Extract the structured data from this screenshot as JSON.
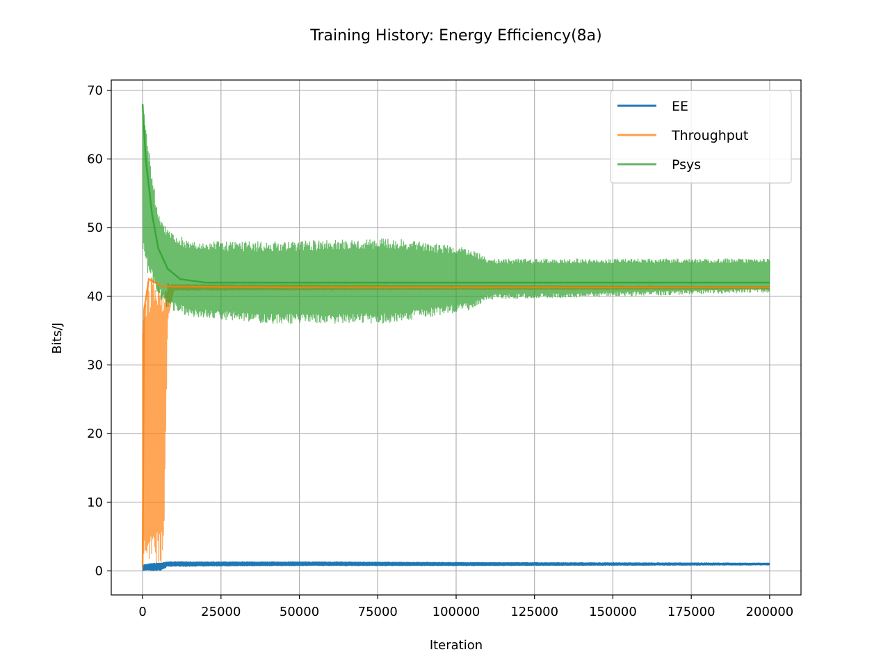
{
  "chart_data": {
    "type": "line",
    "title": "Training History: Energy Efficiency(8a)",
    "xlabel": "Iteration",
    "ylabel": "Bits/J",
    "xlim": [
      -10000,
      210000
    ],
    "ylim": [
      -3.5,
      71.5
    ],
    "xticks": [
      0,
      25000,
      50000,
      75000,
      100000,
      125000,
      150000,
      175000,
      200000
    ],
    "yticks": [
      0,
      10,
      20,
      30,
      40,
      50,
      60,
      70
    ],
    "grid": true,
    "legend": {
      "position": "top-right"
    },
    "series": [
      {
        "name": "EE",
        "color": "#1f77b4",
        "points": [
          [
            0,
            0.5
          ],
          [
            1000,
            0.6
          ],
          [
            3000,
            0.8
          ],
          [
            5000,
            1.0
          ],
          [
            7000,
            1.0
          ],
          [
            10000,
            1.0
          ],
          [
            25000,
            1.05
          ],
          [
            50000,
            1.05
          ],
          [
            75000,
            1.05
          ],
          [
            100000,
            1.0
          ],
          [
            125000,
            1.0
          ],
          [
            150000,
            1.0
          ],
          [
            175000,
            1.0
          ],
          [
            200000,
            1.0
          ]
        ],
        "band": [
          [
            0,
            0.0,
            1.0
          ],
          [
            6000,
            0.0,
            1.3
          ],
          [
            8000,
            0.6,
            1.4
          ],
          [
            50000,
            0.7,
            1.4
          ],
          [
            100000,
            0.7,
            1.3
          ],
          [
            200000,
            0.8,
            1.2
          ]
        ]
      },
      {
        "name": "Throughput",
        "color": "#ff7f0e",
        "points": [
          [
            0,
            0.5
          ],
          [
            500,
            38
          ],
          [
            2000,
            42.5
          ],
          [
            4000,
            42
          ],
          [
            6000,
            41.5
          ],
          [
            10000,
            41.4
          ],
          [
            50000,
            41.3
          ],
          [
            100000,
            41.3
          ],
          [
            150000,
            41.3
          ],
          [
            200000,
            41.3
          ]
        ],
        "band": [
          [
            0,
            0.2,
            38.5
          ],
          [
            1500,
            0.5,
            43
          ],
          [
            3000,
            0.5,
            43
          ],
          [
            6500,
            0.5,
            42.5
          ],
          [
            7000,
            9,
            42
          ],
          [
            8000,
            36,
            42
          ],
          [
            10000,
            40.8,
            41.8
          ],
          [
            200000,
            41.0,
            41.5
          ]
        ]
      },
      {
        "name": "Psys",
        "color": "#2ca02c",
        "points": [
          [
            0,
            68
          ],
          [
            1000,
            60
          ],
          [
            3000,
            52
          ],
          [
            5000,
            47
          ],
          [
            8000,
            44
          ],
          [
            12000,
            42.5
          ],
          [
            20000,
            42
          ],
          [
            50000,
            42
          ],
          [
            100000,
            42
          ],
          [
            110000,
            42
          ],
          [
            150000,
            42
          ],
          [
            200000,
            42
          ]
        ],
        "band": [
          [
            0,
            47,
            68
          ],
          [
            1500,
            43,
            64
          ],
          [
            3000,
            42,
            58
          ],
          [
            5000,
            40,
            52
          ],
          [
            8000,
            38,
            50
          ],
          [
            15000,
            37,
            48
          ],
          [
            40000,
            36,
            48
          ],
          [
            80000,
            36,
            48.5
          ],
          [
            105000,
            38,
            47
          ],
          [
            110000,
            39.5,
            45.5
          ],
          [
            200000,
            40.5,
            45.5
          ]
        ]
      }
    ]
  }
}
